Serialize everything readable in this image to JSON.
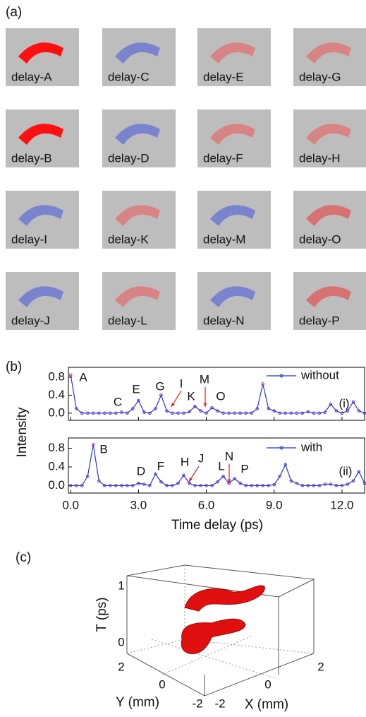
{
  "panel_a": {
    "label": "(a)",
    "images": [
      {
        "label": "delay-A",
        "color": "#ff1010"
      },
      {
        "label": "delay-C",
        "color": "#4455dd"
      },
      {
        "label": "delay-E",
        "color": "#ee5555"
      },
      {
        "label": "delay-G",
        "color": "#ee5555"
      },
      {
        "label": "delay-B",
        "color": "#ff1010"
      },
      {
        "label": "delay-D",
        "color": "#4455dd"
      },
      {
        "label": "delay-F",
        "color": "#ee5555"
      },
      {
        "label": "delay-H",
        "color": "#ee5555"
      },
      {
        "label": "delay-I",
        "color": "#4455dd"
      },
      {
        "label": "delay-K",
        "color": "#ee5555"
      },
      {
        "label": "delay-M",
        "color": "#4455dd"
      },
      {
        "label": "delay-O",
        "color": "#ee3333"
      },
      {
        "label": "delay-J",
        "color": "#4455dd"
      },
      {
        "label": "delay-L",
        "color": "#ee5555"
      },
      {
        "label": "delay-N",
        "color": "#4455dd"
      },
      {
        "label": "delay-P",
        "color": "#ee3333"
      }
    ]
  },
  "panel_b": {
    "label": "(b)",
    "ylabel": "Intensity",
    "xlabel": "Time delay (ps)"
  },
  "chart_data": [
    {
      "type": "line",
      "xlim": [
        -0.1,
        13
      ],
      "ylim": [
        -0.16,
        1.02
      ],
      "xticks": [
        {
          "value": 0,
          "label": "0.0"
        },
        {
          "value": 3,
          "label": "3.0"
        },
        {
          "value": 6,
          "label": "6.0"
        },
        {
          "value": 9,
          "label": "9.0"
        },
        {
          "value": 12,
          "label": "12.0"
        }
      ],
      "yticks": [
        {
          "value": 0,
          "label": "0.0"
        },
        {
          "value": 0.4,
          "label": "0.4"
        },
        {
          "value": 0.8,
          "label": "0.8"
        }
      ],
      "annotations": [
        "A",
        "C",
        "E",
        "G",
        "I",
        "K",
        "M",
        "O",
        "(i)"
      ],
      "x": [
        0,
        0.25,
        0.5,
        0.75,
        1,
        1.25,
        1.5,
        1.75,
        2,
        2.25,
        2.5,
        2.75,
        3,
        3.25,
        3.5,
        3.75,
        4,
        4.25,
        4.5,
        4.75,
        5,
        5.25,
        5.5,
        5.75,
        6,
        6.25,
        6.5,
        6.75,
        7,
        7.25,
        7.5,
        7.75,
        8,
        8.25,
        8.5,
        8.75,
        9,
        9.25,
        9.5,
        9.75,
        10,
        10.25,
        10.5,
        10.75,
        11,
        11.25,
        11.5,
        11.75,
        12,
        12.25,
        12.5,
        12.75,
        13
      ],
      "series": [
        {
          "name": "without",
          "color": "#2233dd",
          "values": [
            0.85,
            0.1,
            0,
            0,
            0,
            0,
            0,
            0,
            0,
            0.02,
            0,
            0.1,
            0.28,
            0.02,
            0,
            0.1,
            0.4,
            0.05,
            0,
            0,
            0,
            0.03,
            0.15,
            0.05,
            0,
            0.12,
            0.05,
            0,
            0,
            0,
            0,
            0,
            0,
            0.1,
            0.65,
            0.1,
            0.05,
            0,
            0,
            0,
            0,
            0,
            0.03,
            0,
            0,
            0.02,
            0.2,
            0.05,
            0,
            0.05,
            0.25,
            0.05,
            0
          ]
        }
      ]
    },
    {
      "type": "line",
      "xlim": [
        -0.1,
        13
      ],
      "ylim": [
        -0.16,
        1.02
      ],
      "xticks": [
        {
          "value": 0,
          "label": "0.0"
        },
        {
          "value": 3,
          "label": "3.0"
        },
        {
          "value": 6,
          "label": "6.0"
        },
        {
          "value": 9,
          "label": "9.0"
        },
        {
          "value": 12,
          "label": "12.0"
        }
      ],
      "yticks": [
        {
          "value": 0,
          "label": "0.0"
        },
        {
          "value": 0.4,
          "label": "0.4"
        },
        {
          "value": 0.8,
          "label": "0.8"
        }
      ],
      "annotations": [
        "B",
        "D",
        "F",
        "H",
        "J",
        "L",
        "N",
        "P",
        "(ii)"
      ],
      "x": [
        0,
        0.25,
        0.5,
        0.75,
        1,
        1.25,
        1.5,
        1.75,
        2,
        2.25,
        2.5,
        2.75,
        3,
        3.25,
        3.5,
        3.75,
        4,
        4.25,
        4.5,
        4.75,
        5,
        5.25,
        5.5,
        5.75,
        6,
        6.25,
        6.5,
        6.75,
        7,
        7.25,
        7.5,
        7.75,
        8,
        8.25,
        8.5,
        8.75,
        9,
        9.25,
        9.5,
        9.75,
        10,
        10.25,
        10.5,
        10.75,
        11,
        11.25,
        11.5,
        11.75,
        12,
        12.25,
        12.5,
        12.75,
        13
      ],
      "series": [
        {
          "name": "with",
          "color": "#2233dd",
          "values": [
            0,
            0,
            0,
            0.2,
            0.88,
            0.1,
            0,
            0,
            0,
            0,
            0,
            0,
            0.05,
            0.03,
            0,
            0.25,
            0.08,
            0,
            0,
            0.05,
            0.22,
            0.05,
            0,
            0,
            0,
            0,
            0.08,
            0.2,
            0.05,
            0.15,
            0.05,
            0,
            0,
            0,
            0,
            0,
            0.02,
            0.2,
            0.45,
            0.1,
            0.05,
            0,
            0,
            0,
            0,
            0.03,
            0.03,
            0,
            0,
            0.03,
            0.1,
            0.3,
            0.05
          ]
        }
      ]
    }
  ],
  "panel_c": {
    "label": "(c)",
    "tlabel": "T (ps)",
    "tticks": [
      1,
      0
    ],
    "ylabel": "Y (mm)",
    "yticks": [
      2,
      0,
      -2
    ],
    "xlabel": "X (mm)",
    "xticks": [
      -2,
      0,
      2
    ]
  }
}
